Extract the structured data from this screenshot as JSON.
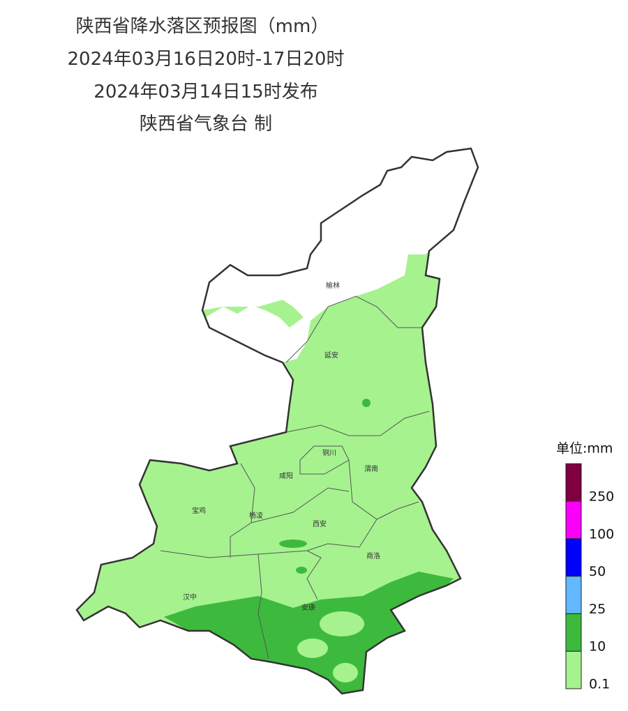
{
  "header": {
    "title": "陕西省降水落区预报图（mm）",
    "period": "2024年03月16日20时-17日20时",
    "issued": "2024年03月14日15时发布",
    "issuer": "陕西省气象台 制"
  },
  "cities": [
    "榆林",
    "延安",
    "铜川",
    "渭南",
    "咸阳",
    "宝鸡",
    "杨凌",
    "西安",
    "商洛",
    "汉中",
    "安康"
  ],
  "legend": {
    "unit": "单位:mm",
    "ticks": [
      0.1,
      10,
      25,
      50,
      100,
      250
    ],
    "colors": [
      "#a6f28f",
      "#3dba3d",
      "#61b8ff",
      "#0000ff",
      "#fa00fa",
      "#800040"
    ]
  }
}
